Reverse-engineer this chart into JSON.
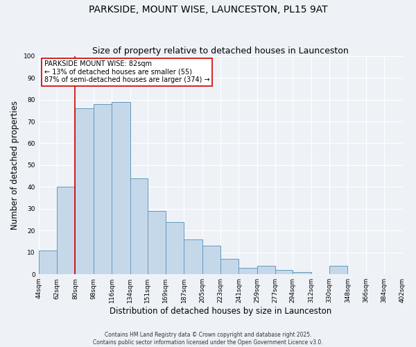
{
  "title": "PARKSIDE, MOUNT WISE, LAUNCESTON, PL15 9AT",
  "subtitle": "Size of property relative to detached houses in Launceston",
  "xlabel": "Distribution of detached houses by size in Launceston",
  "ylabel": "Number of detached properties",
  "bin_labels": [
    "44sqm",
    "62sqm",
    "80sqm",
    "98sqm",
    "116sqm",
    "134sqm",
    "151sqm",
    "169sqm",
    "187sqm",
    "205sqm",
    "223sqm",
    "241sqm",
    "259sqm",
    "277sqm",
    "294sqm",
    "312sqm",
    "330sqm",
    "348sqm",
    "366sqm",
    "384sqm",
    "402sqm"
  ],
  "bar_heights": [
    11,
    40,
    76,
    78,
    79,
    44,
    29,
    24,
    16,
    13,
    7,
    3,
    4,
    2,
    1,
    0,
    4,
    0,
    0,
    0
  ],
  "bar_edges": [
    44,
    62,
    80,
    98,
    116,
    134,
    151,
    169,
    187,
    205,
    223,
    241,
    259,
    277,
    294,
    312,
    330,
    348,
    366,
    384,
    402
  ],
  "bar_color": "#c5d8ea",
  "bar_edge_color": "#6699bb",
  "ylim": [
    0,
    100
  ],
  "yticks": [
    0,
    10,
    20,
    30,
    40,
    50,
    60,
    70,
    80,
    90,
    100
  ],
  "vline_x": 80,
  "vline_color": "#cc0000",
  "annotation_title": "PARKSIDE MOUNT WISE: 82sqm",
  "annotation_line1": "← 13% of detached houses are smaller (55)",
  "annotation_line2": "87% of semi-detached houses are larger (374) →",
  "annotation_box_color": "#cc0000",
  "footer_line1": "Contains HM Land Registry data © Crown copyright and database right 2025.",
  "footer_line2": "Contains public sector information licensed under the Open Government Licence v3.0.",
  "bg_color": "#eef2f7",
  "grid_color": "#ffffff",
  "title_fontsize": 10,
  "subtitle_fontsize": 9,
  "axis_label_fontsize": 8.5,
  "tick_fontsize": 6.5,
  "footer_fontsize": 5.5
}
